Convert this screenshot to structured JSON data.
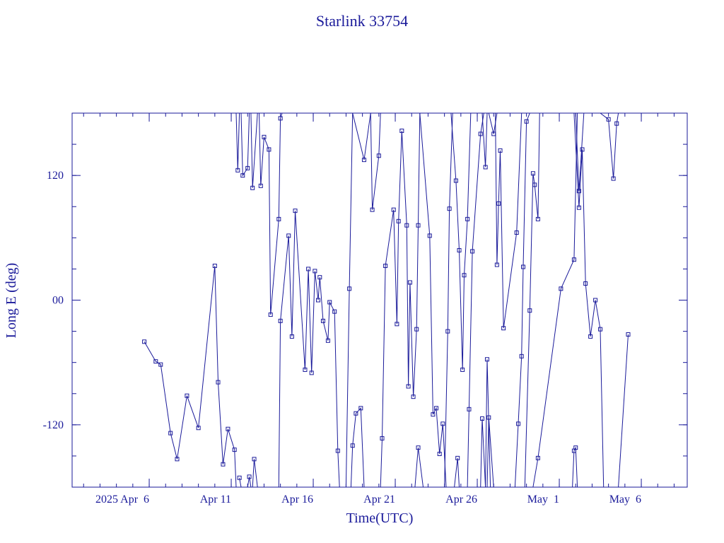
{
  "chart_data": {
    "type": "line",
    "title": "Starlink 33754",
    "xlabel": "Time(UTC)",
    "ylabel": "Long E (deg)",
    "color": "#1a1a9a",
    "x_tick_labels": [
      "2025 Apr  6",
      "Apr 11",
      "Apr 16",
      "Apr 21",
      "Apr 26",
      "May  1",
      "May  6"
    ],
    "x_tick_values": [
      6,
      11,
      16,
      21,
      26,
      31,
      36
    ],
    "x_unit": "days since 2025-03-31",
    "xlim": [
      1.3,
      38.8
    ],
    "y_tick_labels": [
      "-120",
      "00",
      "120"
    ],
    "y_tick_values": [
      -120,
      0,
      120
    ],
    "ylim": [
      -180,
      180
    ],
    "grid": false,
    "series": [
      {
        "segments": [
          [
            [
              5.7,
              -40
            ],
            [
              6.4,
              -59
            ],
            [
              6.7,
              -62
            ],
            [
              7.3,
              -128
            ],
            [
              7.7,
              -153
            ],
            [
              8.3,
              -92
            ],
            [
              9.0,
              -123
            ],
            [
              10.0,
              33
            ],
            [
              10.2,
              -79
            ],
            [
              10.5,
              -158
            ],
            [
              10.8,
              -124
            ],
            [
              11.2,
              -144
            ],
            [
              11.3,
              -180
            ]
          ],
          [
            [
              11.5,
              -171
            ],
            [
              11.6,
              -180
            ]
          ],
          [
            [
              12.0,
              -180
            ],
            [
              12.1,
              -170
            ],
            [
              12.2,
              -180
            ]
          ],
          [
            [
              12.3,
              -180
            ],
            [
              12.4,
              -153
            ],
            [
              12.6,
              -180
            ]
          ],
          [
            [
              11.3,
              180
            ],
            [
              11.4,
              125
            ],
            [
              11.5,
              180
            ]
          ],
          [
            [
              11.6,
              180
            ],
            [
              11.7,
              120
            ],
            [
              12.0,
              127
            ],
            [
              12.1,
              180
            ]
          ],
          [
            [
              12.2,
              180
            ],
            [
              12.3,
              108
            ],
            [
              12.6,
              180
            ]
          ],
          [
            [
              12.7,
              180
            ],
            [
              12.8,
              110
            ],
            [
              13.0,
              157
            ],
            [
              13.3,
              145
            ],
            [
              13.4,
              -14
            ],
            [
              13.9,
              78
            ],
            [
              14.0,
              175
            ],
            [
              14.1,
              180
            ]
          ],
          [
            [
              13.9,
              -180
            ],
            [
              14.0,
              -20
            ],
            [
              14.5,
              62
            ],
            [
              14.7,
              -35
            ],
            [
              14.9,
              86
            ],
            [
              15.5,
              -67
            ],
            [
              15.7,
              30
            ],
            [
              15.9,
              -70
            ],
            [
              16.1,
              28
            ],
            [
              16.3,
              0
            ],
            [
              16.4,
              22
            ],
            [
              16.6,
              -20
            ],
            [
              16.9,
              -39
            ],
            [
              17.0,
              -2
            ],
            [
              17.3,
              -11
            ],
            [
              17.5,
              -145
            ],
            [
              17.6,
              -180
            ]
          ],
          [
            [
              18.3,
              -180
            ],
            [
              18.4,
              -140
            ],
            [
              18.6,
              -109
            ],
            [
              18.9,
              -104
            ],
            [
              19.1,
              -180
            ]
          ],
          [
            [
              18.0,
              -180
            ],
            [
              18.2,
              11
            ],
            [
              18.4,
              180
            ]
          ],
          [
            [
              18.4,
              180
            ],
            [
              19.1,
              135
            ],
            [
              19.5,
              180
            ]
          ],
          [
            [
              19.5,
              180
            ],
            [
              19.6,
              87
            ],
            [
              20.0,
              139
            ],
            [
              20.1,
              180
            ]
          ],
          [
            [
              20.1,
              -180
            ],
            [
              20.2,
              -133
            ],
            [
              20.4,
              33
            ],
            [
              20.9,
              87
            ],
            [
              21.1,
              -23
            ],
            [
              21.2,
              76
            ],
            [
              21.4,
              163
            ],
            [
              21.7,
              72
            ],
            [
              21.8,
              -83
            ],
            [
              21.9,
              17
            ],
            [
              22.1,
              -93
            ],
            [
              22.3,
              -28
            ],
            [
              22.4,
              72
            ],
            [
              22.5,
              180
            ]
          ],
          [
            [
              22.2,
              -180
            ],
            [
              22.4,
              -142
            ],
            [
              22.7,
              -180
            ]
          ],
          [
            [
              22.5,
              180
            ],
            [
              23.1,
              62
            ],
            [
              23.3,
              -110
            ],
            [
              23.5,
              -104
            ],
            [
              23.7,
              -148
            ],
            [
              23.9,
              -119
            ],
            [
              24.1,
              -180
            ]
          ],
          [
            [
              24.0,
              -180
            ],
            [
              24.2,
              -30
            ],
            [
              24.3,
              88
            ],
            [
              24.5,
              180
            ]
          ],
          [
            [
              24.4,
              180
            ],
            [
              24.7,
              115
            ],
            [
              24.9,
              48
            ],
            [
              25.1,
              -67
            ],
            [
              25.2,
              24
            ],
            [
              25.4,
              78
            ],
            [
              25.6,
              180
            ]
          ],
          [
            [
              24.6,
              -180
            ],
            [
              24.8,
              -152
            ],
            [
              24.9,
              -180
            ]
          ],
          [
            [
              25.4,
              -180
            ],
            [
              25.5,
              -105
            ],
            [
              25.7,
              47
            ],
            [
              26.2,
              160
            ],
            [
              26.4,
              180
            ]
          ],
          [
            [
              26.2,
              -180
            ],
            [
              26.3,
              -114
            ],
            [
              26.5,
              -180
            ]
          ],
          [
            [
              26.3,
              180
            ],
            [
              26.5,
              128
            ],
            [
              26.6,
              180
            ]
          ],
          [
            [
              26.6,
              -180
            ],
            [
              26.7,
              -113
            ],
            [
              27.0,
              -180
            ]
          ],
          [
            [
              26.5,
              -180
            ],
            [
              26.6,
              -57
            ],
            [
              26.8,
              -180
            ]
          ],
          [
            [
              26.7,
              180
            ],
            [
              27.0,
              160
            ],
            [
              27.2,
              180
            ]
          ],
          [
            [
              27.1,
              180
            ],
            [
              27.2,
              34
            ],
            [
              27.3,
              93
            ],
            [
              27.4,
              144
            ],
            [
              27.6,
              -27
            ],
            [
              28.4,
              65
            ],
            [
              28.7,
              180
            ]
          ],
          [
            [
              28.3,
              -180
            ],
            [
              28.5,
              -119
            ],
            [
              28.7,
              -54
            ],
            [
              28.8,
              32
            ],
            [
              29.0,
              172
            ],
            [
              29.2,
              180
            ]
          ],
          [
            [
              28.9,
              -180
            ],
            [
              29.2,
              -10
            ],
            [
              29.4,
              122
            ],
            [
              29.5,
              111
            ],
            [
              29.7,
              78
            ],
            [
              29.8,
              180
            ]
          ],
          [
            [
              29.4,
              -180
            ],
            [
              29.7,
              -152
            ],
            [
              31.1,
              11
            ],
            [
              31.9,
              39
            ],
            [
              32.1,
              180
            ]
          ],
          [
            [
              31.8,
              -180
            ],
            [
              31.9,
              -145
            ],
            [
              32.0,
              -142
            ],
            [
              32.1,
              -180
            ]
          ],
          [
            [
              31.9,
              180
            ],
            [
              32.2,
              89
            ],
            [
              32.4,
              145
            ],
            [
              32.6,
              16
            ],
            [
              32.9,
              -35
            ],
            [
              33.2,
              0
            ],
            [
              33.5,
              -28
            ],
            [
              33.7,
              -180
            ]
          ],
          [
            [
              32.0,
              180
            ],
            [
              32.2,
              105
            ],
            [
              32.5,
              180
            ]
          ],
          [
            [
              33.5,
              180
            ],
            [
              34.0,
              174
            ],
            [
              34.3,
              117
            ],
            [
              34.5,
              170
            ],
            [
              34.6,
              180
            ]
          ],
          [
            [
              34.6,
              -180
            ],
            [
              35.2,
              -33
            ]
          ]
        ]
      }
    ]
  }
}
